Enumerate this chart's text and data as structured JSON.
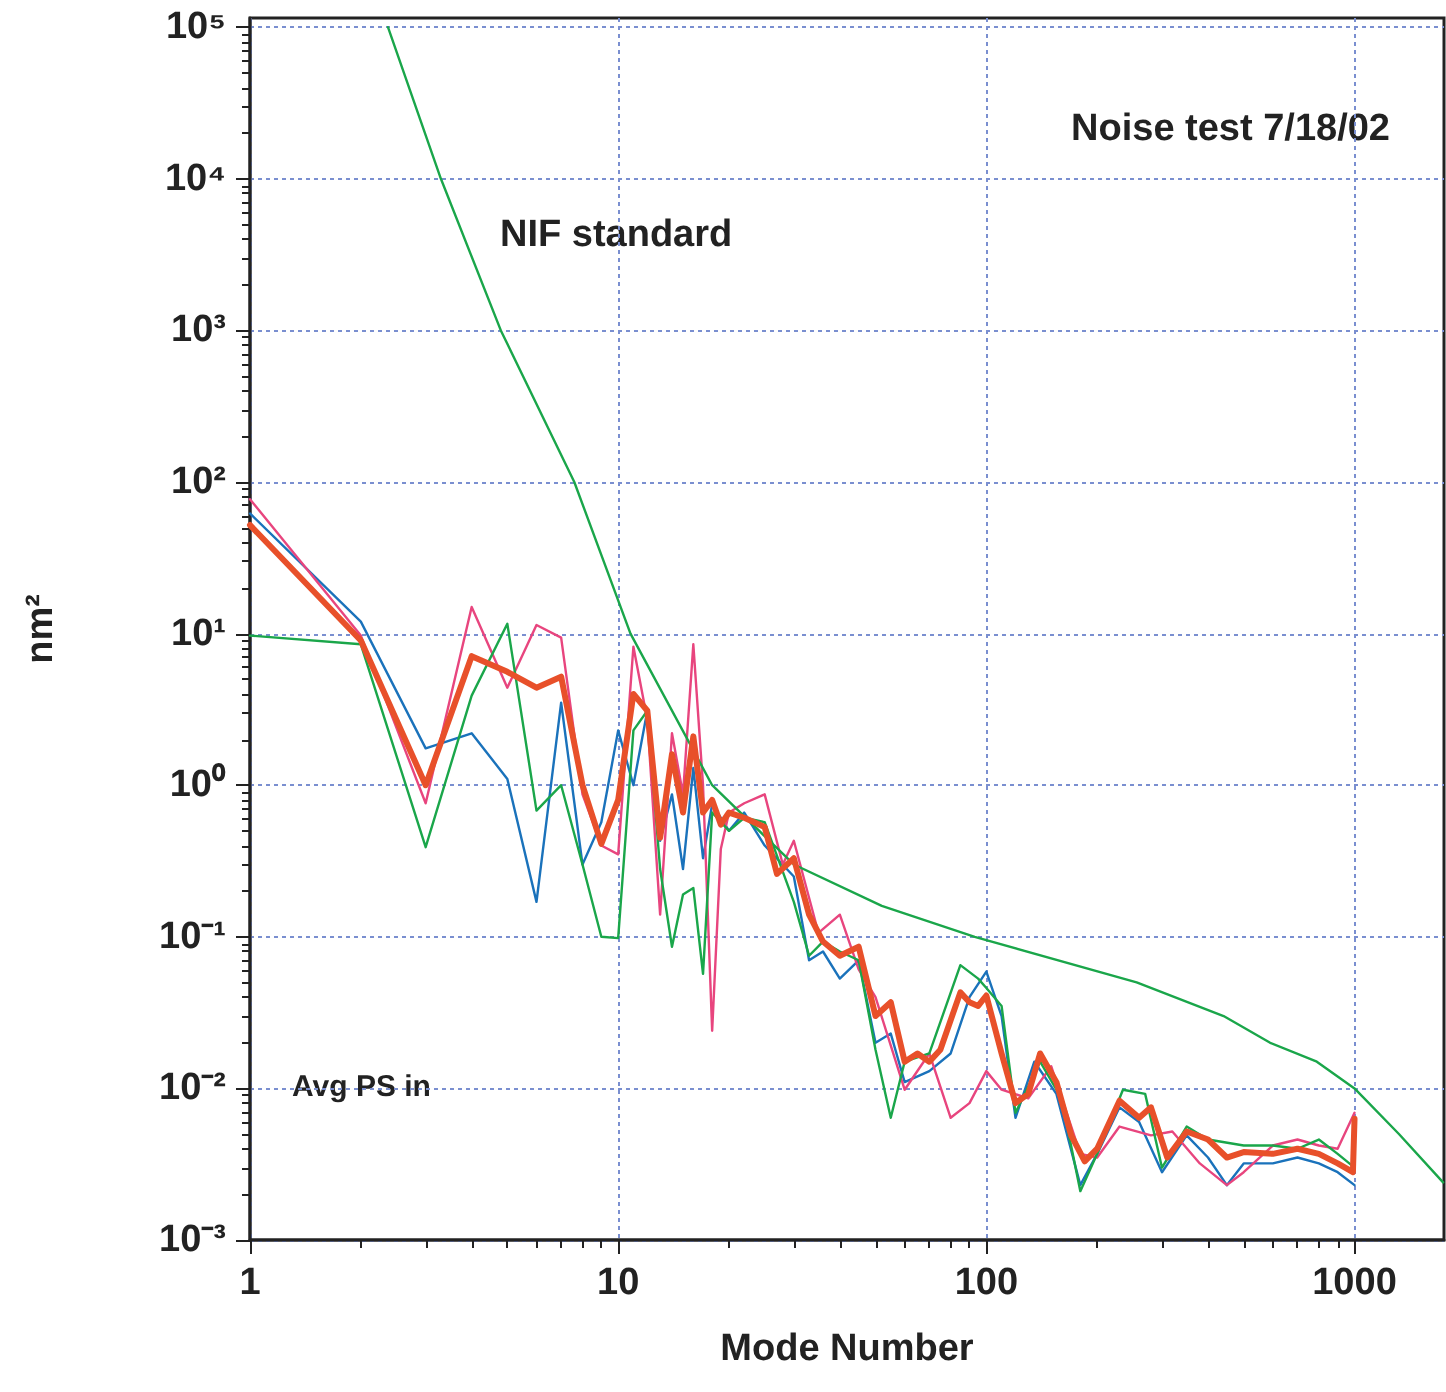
{
  "chart_data": {
    "type": "line",
    "xlabel": "Mode Number",
    "ylabel": "nm²",
    "log": "xy",
    "grid": true,
    "legend": false,
    "marker": "none",
    "line_style": "solid",
    "annotations": [
      "Noise test 7/18/02",
      "Avg PS in"
    ],
    "xlim": [
      1,
      1750
    ],
    "xticks": [
      1,
      10,
      100,
      1000
    ],
    "ylim": [
      0.001,
      115000
    ],
    "yticks": [
      {
        "value": 0.001,
        "label": "10⁻³"
      },
      {
        "value": 0.01,
        "label": "10⁻²"
      },
      {
        "value": 0.1,
        "label": "10⁻¹"
      },
      {
        "value": 1,
        "label": "10⁰"
      },
      {
        "value": 10,
        "label": "10¹"
      },
      {
        "value": 100,
        "label": "10²"
      },
      {
        "value": 1000,
        "label": "10³"
      },
      {
        "value": 10000,
        "label": "10⁴"
      },
      {
        "value": 100000,
        "label": "10⁵"
      }
    ],
    "series": [
      {
        "color": "#1a72bb",
        "x": [
          1,
          2,
          3,
          4,
          5,
          6,
          7,
          8,
          9,
          10,
          11,
          12,
          13,
          14,
          15,
          16,
          17,
          18,
          20,
          22,
          25,
          30,
          33,
          36,
          40,
          45,
          50,
          55,
          60,
          70,
          80,
          90,
          100,
          110,
          120,
          135,
          155,
          180,
          200,
          230,
          260,
          300,
          350,
          400,
          450,
          500,
          600,
          700,
          800,
          900,
          1000
        ],
        "values": [
          62,
          12,
          1.75,
          2.2,
          1.1,
          0.17,
          3.5,
          0.3,
          0.57,
          2.3,
          1.0,
          3.1,
          0.43,
          0.87,
          0.28,
          1.3,
          0.33,
          0.75,
          0.5,
          0.66,
          0.4,
          0.25,
          0.07,
          0.08,
          0.053,
          0.07,
          0.02,
          0.023,
          0.011,
          0.013,
          0.017,
          0.04,
          0.059,
          0.03,
          0.0064,
          0.015,
          0.0092,
          0.0023,
          0.0037,
          0.0075,
          0.006,
          0.0028,
          0.0049,
          0.0035,
          0.0023,
          0.0032,
          0.0032,
          0.0035,
          0.0032,
          0.0028,
          0.0023
        ]
      },
      {
        "color": "#e8457e",
        "x": [
          1,
          2,
          3,
          4,
          5,
          6,
          7,
          8,
          9,
          10,
          11,
          12,
          13,
          14,
          15,
          16,
          17,
          18,
          19,
          20,
          22,
          25,
          28,
          30,
          35,
          40,
          45,
          50,
          60,
          70,
          80,
          90,
          100,
          110,
          130,
          150,
          180,
          200,
          230,
          280,
          320,
          380,
          450,
          500,
          600,
          700,
          800,
          900,
          1000
        ],
        "values": [
          77,
          9.7,
          0.76,
          15,
          4.4,
          11.4,
          9.4,
          0.87,
          0.4,
          0.35,
          8.2,
          2.7,
          0.14,
          2.2,
          0.87,
          8.5,
          1.0,
          0.024,
          0.38,
          0.66,
          0.76,
          0.87,
          0.3,
          0.43,
          0.106,
          0.14,
          0.061,
          0.04,
          0.0098,
          0.017,
          0.0064,
          0.008,
          0.013,
          0.0098,
          0.0086,
          0.014,
          0.0037,
          0.0035,
          0.0056,
          0.0049,
          0.0052,
          0.0032,
          0.0023,
          0.0028,
          0.0042,
          0.0046,
          0.0042,
          0.004,
          0.0069
        ]
      },
      {
        "color": "#1aa64a",
        "x": [
          1,
          2,
          3,
          4,
          5,
          6,
          7,
          8,
          9,
          10,
          11,
          12,
          13,
          14,
          15,
          16,
          17,
          18,
          20,
          22,
          25,
          30,
          33,
          36,
          40,
          45,
          50,
          55,
          60,
          70,
          85,
          95,
          100,
          110,
          120,
          140,
          160,
          180,
          200,
          235,
          270,
          300,
          350,
          400,
          500,
          600,
          700,
          800,
          900,
          1000
        ],
        "values": [
          9.7,
          8.5,
          0.39,
          3.9,
          11.6,
          0.68,
          1.0,
          0.3,
          0.1,
          0.098,
          2.3,
          3.1,
          0.28,
          0.086,
          0.19,
          0.21,
          0.057,
          0.66,
          0.5,
          0.61,
          0.57,
          0.17,
          0.075,
          0.093,
          0.08,
          0.07,
          0.018,
          0.0064,
          0.015,
          0.017,
          0.065,
          0.053,
          0.046,
          0.035,
          0.0069,
          0.015,
          0.0086,
          0.0021,
          0.0037,
          0.0098,
          0.0092,
          0.003,
          0.0056,
          0.0046,
          0.0042,
          0.0042,
          0.004,
          0.0046,
          0.0037,
          0.003
        ]
      },
      {
        "color": "#e8502a",
        "x": [
          1,
          2,
          3,
          4,
          5,
          6,
          7,
          8,
          9,
          10,
          11,
          12,
          13,
          14,
          15,
          16,
          17,
          18,
          19,
          20,
          22,
          25,
          27,
          30,
          33,
          36,
          40,
          45,
          50,
          55,
          60,
          65,
          70,
          75,
          85,
          90,
          95,
          100,
          110,
          120,
          130,
          140,
          155,
          170,
          185,
          200,
          230,
          260,
          280,
          310,
          350,
          400,
          450,
          500,
          600,
          700,
          800,
          900,
          990,
          1000
        ],
        "values": [
          52,
          9.0,
          1.0,
          7.1,
          5.6,
          4.4,
          5.2,
          1.0,
          0.41,
          0.8,
          4.0,
          3.1,
          0.45,
          1.6,
          0.66,
          2.1,
          0.66,
          0.8,
          0.55,
          0.66,
          0.61,
          0.53,
          0.26,
          0.33,
          0.14,
          0.093,
          0.075,
          0.086,
          0.03,
          0.037,
          0.015,
          0.017,
          0.015,
          0.018,
          0.043,
          0.037,
          0.035,
          0.041,
          0.017,
          0.008,
          0.0092,
          0.017,
          0.011,
          0.0049,
          0.0033,
          0.004,
          0.0083,
          0.0064,
          0.0075,
          0.0035,
          0.0052,
          0.0046,
          0.0035,
          0.0038,
          0.0037,
          0.004,
          0.0037,
          0.0032,
          0.0028,
          0.0063
        ]
      },
      {
        "name": "NIF standard",
        "color": "#1aa64a",
        "x": [
          2.37,
          3.3,
          4.8,
          7.6,
          10.8,
          18,
          30,
          52,
          93,
          256,
          441,
          590,
          790,
          1000,
          1320,
          1740
        ],
        "values": [
          100000,
          10000,
          1000,
          100,
          10,
          1,
          0.3,
          0.16,
          0.1,
          0.05,
          0.03,
          0.02,
          0.015,
          0.01,
          0.005,
          0.0024
        ]
      }
    ]
  }
}
